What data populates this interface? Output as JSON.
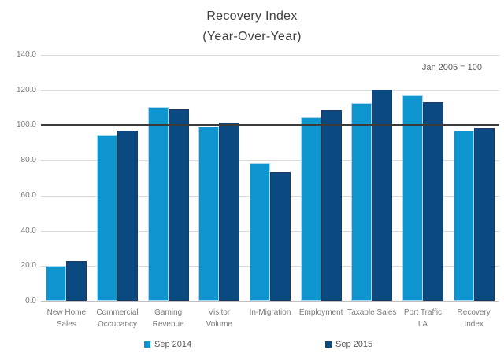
{
  "chart_data": {
    "type": "bar",
    "title": "Recovery Index",
    "subtitle": "(Year-Over-Year)",
    "annotation": "Jan 2005 = 100",
    "categories_full": [
      "New Home Sales",
      "Commercial Occupancy",
      "Gaming Revenue",
      "Visitor Volume",
      "In-Migration",
      "Employment",
      "Taxable Sales",
      "Port Traffic LA",
      "Recovery Index"
    ],
    "categories_lines": [
      [
        "New Home",
        "Sales"
      ],
      [
        "Commercial",
        "Occupancy"
      ],
      [
        "Gaming",
        "Revenue"
      ],
      [
        "Visitor",
        "Volume"
      ],
      [
        "In-Migration"
      ],
      [
        "Employment"
      ],
      [
        "Taxable Sales"
      ],
      [
        "Port Traffic",
        "LA"
      ],
      [
        "Recovery",
        "Index"
      ]
    ],
    "series": [
      {
        "name": "Sep 2014",
        "color": "#0e95d0",
        "border_color": "#a9d8ef",
        "values": [
          20,
          94.5,
          110.5,
          99.5,
          78.5,
          104.5,
          112.5,
          117,
          97
        ]
      },
      {
        "name": "Sep 2015",
        "color": "#0b4a80",
        "border_color": "#1f3864",
        "values": [
          23,
          97,
          109,
          101.5,
          73.5,
          108.5,
          120.5,
          113,
          98.5
        ]
      }
    ],
    "ylim": [
      0,
      140
    ],
    "ytick_step": 20,
    "ytick_labels": [
      "0.0",
      "20.0",
      "40.0",
      "60.0",
      "80.0",
      "100.0",
      "120.0",
      "140.0"
    ],
    "reference_line": 100,
    "grid": true,
    "legend_position": "bottom",
    "colors": {
      "gridline": "#d9d9d9",
      "axis_line": "#bfbfbf",
      "reference_line": "#3b3b3b",
      "title_text": "#404040",
      "tick_text": "#7a7a7a",
      "legend_text": "#595959"
    }
  }
}
